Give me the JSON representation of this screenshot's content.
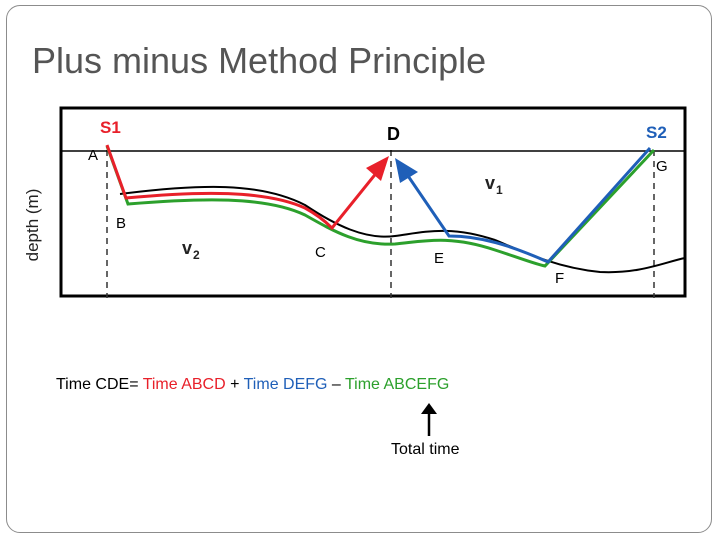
{
  "slide": {
    "title": "Plus minus Method Principle"
  },
  "figure": {
    "axis_label": "depth (m)",
    "sources": {
      "s1": "S1",
      "s2": "S2"
    },
    "points": {
      "a": "A",
      "b": "B",
      "c": "C",
      "d": "D",
      "e": "E",
      "f": "F",
      "g": "G"
    },
    "velocity_labels": {
      "v1": "v",
      "v1_sub": "1",
      "v2": "v",
      "v2_sub": "2"
    },
    "colors": {
      "red_path": "#e8202a",
      "blue_path": "#1f5fb8",
      "green_path": "#2ca02c",
      "source_label": "#e8202a",
      "s2_label": "#1f5fb8"
    }
  },
  "equation": {
    "part1": "Time CDE= ",
    "part2": "Time ABCD",
    "part3": " + ",
    "part4": "Time DEFG",
    "part5": " – ",
    "part6": "Time ABCEFG"
  },
  "annotation": {
    "total_time": "Total time"
  }
}
